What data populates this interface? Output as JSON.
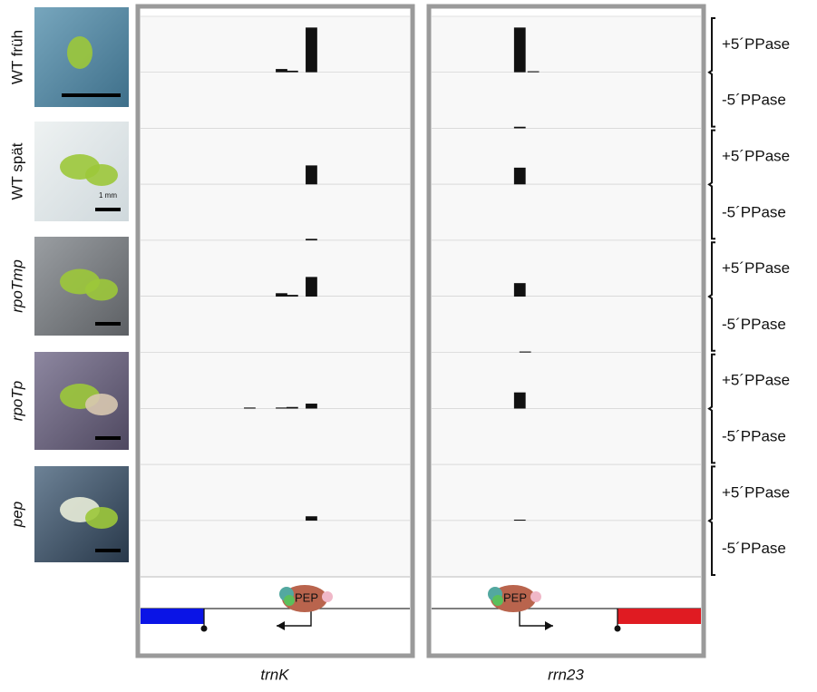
{
  "samples": [
    {
      "label": "WT früh",
      "italic": false
    },
    {
      "label": "WT spät",
      "italic": false
    },
    {
      "label": "rpoTmp",
      "italic": true
    },
    {
      "label": "rpoTp",
      "italic": true
    },
    {
      "label": "pep",
      "italic": true
    }
  ],
  "scale_label": "1 mm",
  "treatments": [
    "+5´PPase",
    "-5´PPase"
  ],
  "panels": [
    {
      "gene": "trnK",
      "polymerase": "PEP",
      "direction": "left",
      "flank_color": "#0a14e6",
      "flank_side": "left",
      "tracks": [
        [
          {
            "x": 50.2,
            "value": 6
          },
          {
            "x": 54.2,
            "value": 3
          },
          {
            "x": 61.3,
            "value": 80
          }
        ],
        [],
        [
          {
            "x": 61.3,
            "value": 34
          }
        ],
        [
          {
            "x": 61.3,
            "value": 3
          }
        ],
        [
          {
            "x": 50.2,
            "value": 6
          },
          {
            "x": 54.2,
            "value": 3
          },
          {
            "x": 61.3,
            "value": 35
          }
        ],
        [],
        [
          {
            "x": 38.4,
            "value": 2
          },
          {
            "x": 50.2,
            "value": 2
          },
          {
            "x": 54.2,
            "value": 3
          },
          {
            "x": 61.3,
            "value": 9
          }
        ],
        [],
        [
          {
            "x": 61.3,
            "value": 8
          }
        ],
        []
      ]
    },
    {
      "gene": "rrn23",
      "polymerase": "PEP",
      "direction": "right",
      "flank_color": "#e01b22",
      "flank_side": "right",
      "tracks": [
        [
          {
            "x": 30.6,
            "value": 80
          },
          {
            "x": 35.6,
            "value": 2
          }
        ],
        [
          {
            "x": 30.6,
            "value": 3
          }
        ],
        [
          {
            "x": 30.6,
            "value": 30
          }
        ],
        [],
        [
          {
            "x": 30.6,
            "value": 24
          }
        ],
        [
          {
            "x": 32.6,
            "value": 2
          }
        ],
        [
          {
            "x": 30.6,
            "value": 29
          }
        ],
        [],
        [
          {
            "x": 30.6,
            "value": 2
          }
        ],
        []
      ]
    }
  ]
}
